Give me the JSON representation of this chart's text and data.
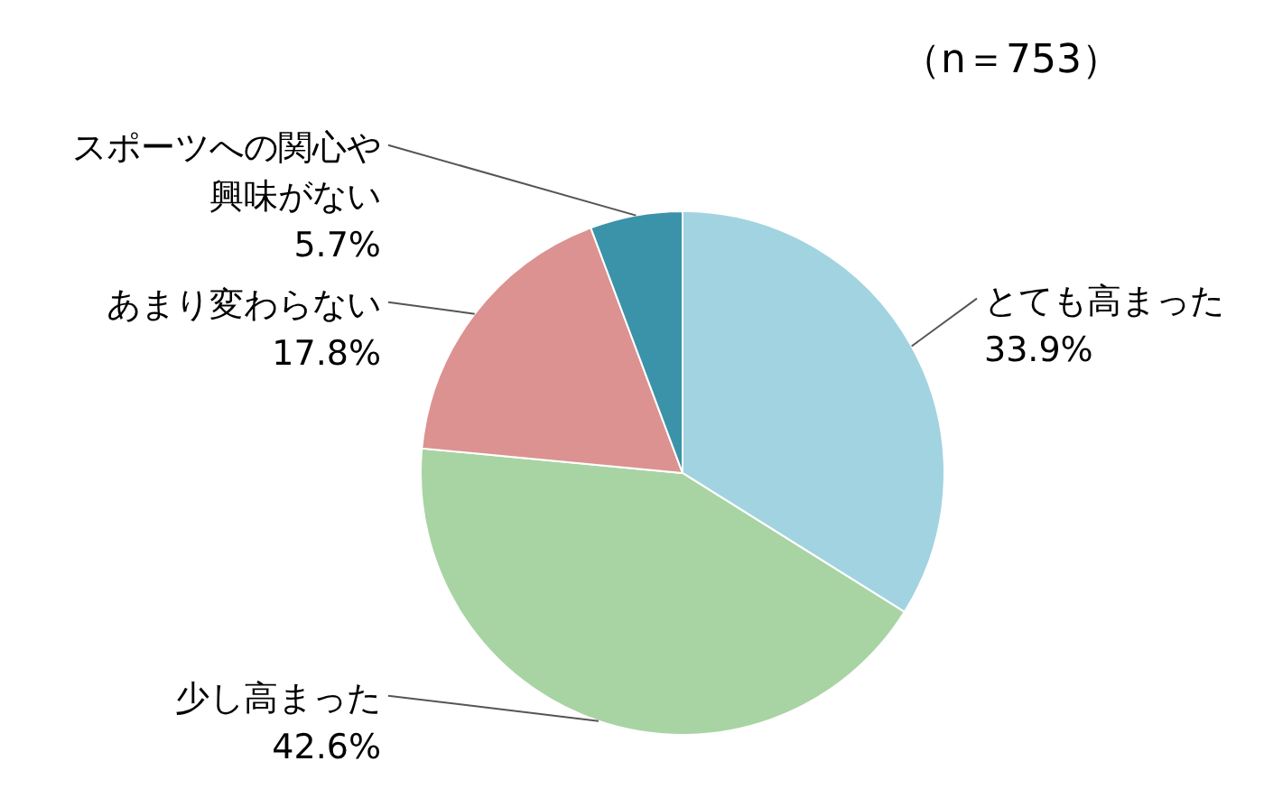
{
  "chart_data": {
    "type": "pie",
    "title": "（n＝753）",
    "categories": [
      "とても高まった",
      "少し高まった",
      "あまり変わらない",
      "スポーツへの関心や興味がない"
    ],
    "values": [
      33.9,
      42.6,
      17.8,
      5.7
    ],
    "colors": [
      "#a2d3e0",
      "#a8d4a3",
      "#dc9290",
      "#3b93a9"
    ],
    "value_labels": [
      "33.9%",
      "42.6%",
      "17.8%",
      "5.7%"
    ]
  }
}
